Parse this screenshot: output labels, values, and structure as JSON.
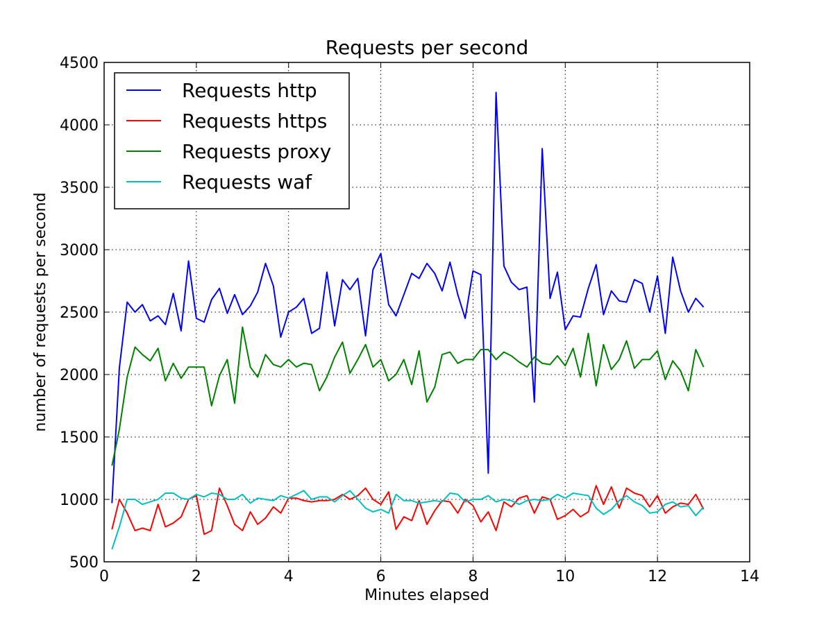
{
  "chart_data": {
    "type": "line",
    "title": "Requests per second",
    "xlabel": "Minutes elapsed",
    "ylabel": "number of requests per second",
    "xlim": [
      0,
      14
    ],
    "ylim": [
      500,
      4500
    ],
    "xticks": [
      0,
      2,
      4,
      6,
      8,
      10,
      12,
      14
    ],
    "yticks": [
      500,
      1000,
      1500,
      2000,
      2500,
      3000,
      3500,
      4000,
      4500
    ],
    "grid": true,
    "legend_position": "top-left",
    "x": [
      0.17,
      0.33,
      0.5,
      0.67,
      0.83,
      1.0,
      1.17,
      1.33,
      1.5,
      1.67,
      1.83,
      2.0,
      2.17,
      2.33,
      2.5,
      2.67,
      2.83,
      3.0,
      3.17,
      3.33,
      3.5,
      3.67,
      3.83,
      4.0,
      4.17,
      4.33,
      4.5,
      4.67,
      4.83,
      5.0,
      5.17,
      5.33,
      5.5,
      5.67,
      5.83,
      6.0,
      6.17,
      6.33,
      6.5,
      6.67,
      6.83,
      7.0,
      7.17,
      7.33,
      7.5,
      7.67,
      7.83,
      8.0,
      8.17,
      8.33,
      8.5,
      8.67,
      8.83,
      9.0,
      9.17,
      9.33,
      9.5,
      9.67,
      9.83,
      10.0,
      10.17,
      10.33,
      10.5,
      10.67,
      10.83,
      11.0,
      11.17,
      11.33,
      11.5,
      11.67,
      11.83,
      12.0,
      12.17,
      12.33,
      12.5,
      12.67,
      12.83,
      13.0
    ],
    "series": [
      {
        "name": "Requests http",
        "color": "#0000ff",
        "values": [
          970,
          2050,
          2580,
          2500,
          2560,
          2430,
          2470,
          2400,
          2650,
          2350,
          2910,
          2450,
          2420,
          2600,
          2690,
          2490,
          2640,
          2480,
          2550,
          2660,
          2890,
          2710,
          2300,
          2500,
          2540,
          2610,
          2330,
          2370,
          2820,
          2390,
          2760,
          2680,
          2770,
          2310,
          2840,
          2970,
          2560,
          2470,
          2640,
          2810,
          2770,
          2890,
          2810,
          2670,
          2900,
          2640,
          2450,
          2830,
          2800,
          1210,
          4260,
          2870,
          2740,
          2680,
          2700,
          1780,
          3810,
          2610,
          2820,
          2360,
          2470,
          2460,
          2690,
          2880,
          2480,
          2670,
          2590,
          2580,
          2760,
          2730,
          2500,
          2790,
          2330,
          2940,
          2670,
          2500,
          2610,
          2540
        ]
      },
      {
        "name": "Requests https",
        "color": "#ff0000",
        "values": [
          760,
          1000,
          890,
          750,
          770,
          750,
          960,
          780,
          810,
          860,
          1000,
          1030,
          720,
          750,
          1090,
          950,
          800,
          750,
          900,
          800,
          850,
          940,
          890,
          1010,
          1010,
          990,
          980,
          990,
          990,
          1000,
          1040,
          1000,
          1030,
          1090,
          1000,
          960,
          1060,
          760,
          860,
          830,
          990,
          800,
          910,
          990,
          980,
          890,
          1000,
          950,
          820,
          900,
          750,
          980,
          940,
          1010,
          1030,
          890,
          1020,
          1000,
          840,
          870,
          920,
          860,
          900,
          1110,
          960,
          1100,
          930,
          1090,
          1050,
          1030,
          940,
          1030,
          890,
          940,
          970,
          960,
          1040,
          920
        ]
      },
      {
        "name": "Requests proxy",
        "color": "#008000",
        "values": [
          1270,
          1560,
          1980,
          2220,
          2160,
          2110,
          2210,
          1950,
          2090,
          1970,
          2060,
          2060,
          2060,
          1750,
          1990,
          2120,
          1770,
          2380,
          2060,
          1980,
          2160,
          2080,
          2060,
          2120,
          2060,
          2090,
          2080,
          1870,
          1980,
          2140,
          2260,
          2010,
          2120,
          2240,
          2060,
          2120,
          1950,
          2000,
          2120,
          1920,
          2190,
          1780,
          1900,
          2160,
          2180,
          2090,
          2120,
          2120,
          2200,
          2200,
          2120,
          2180,
          2150,
          2100,
          2060,
          2140,
          2090,
          2080,
          2150,
          2070,
          2210,
          1980,
          2330,
          1910,
          2240,
          2040,
          2120,
          2270,
          2050,
          2120,
          2120,
          2190,
          1960,
          2110,
          2030,
          1870,
          2200,
          2060
        ]
      },
      {
        "name": "Requests waf",
        "color": "#00bfbf",
        "values": [
          600,
          780,
          1000,
          1000,
          960,
          980,
          1000,
          1050,
          1050,
          1010,
          1000,
          1040,
          1020,
          1050,
          1040,
          1000,
          1000,
          1040,
          970,
          1010,
          1000,
          990,
          1030,
          1010,
          1040,
          1070,
          1000,
          1020,
          1020,
          980,
          1030,
          1070,
          1000,
          930,
          900,
          920,
          890,
          1040,
          990,
          990,
          970,
          980,
          990,
          980,
          1050,
          1040,
          980,
          1000,
          1000,
          1030,
          980,
          1000,
          990,
          960,
          990,
          1000,
          990,
          1000,
          1040,
          1010,
          1050,
          1040,
          1030,
          930,
          880,
          920,
          990,
          1030,
          980,
          950,
          890,
          900,
          960,
          980,
          940,
          950,
          870,
          940
        ]
      }
    ]
  }
}
